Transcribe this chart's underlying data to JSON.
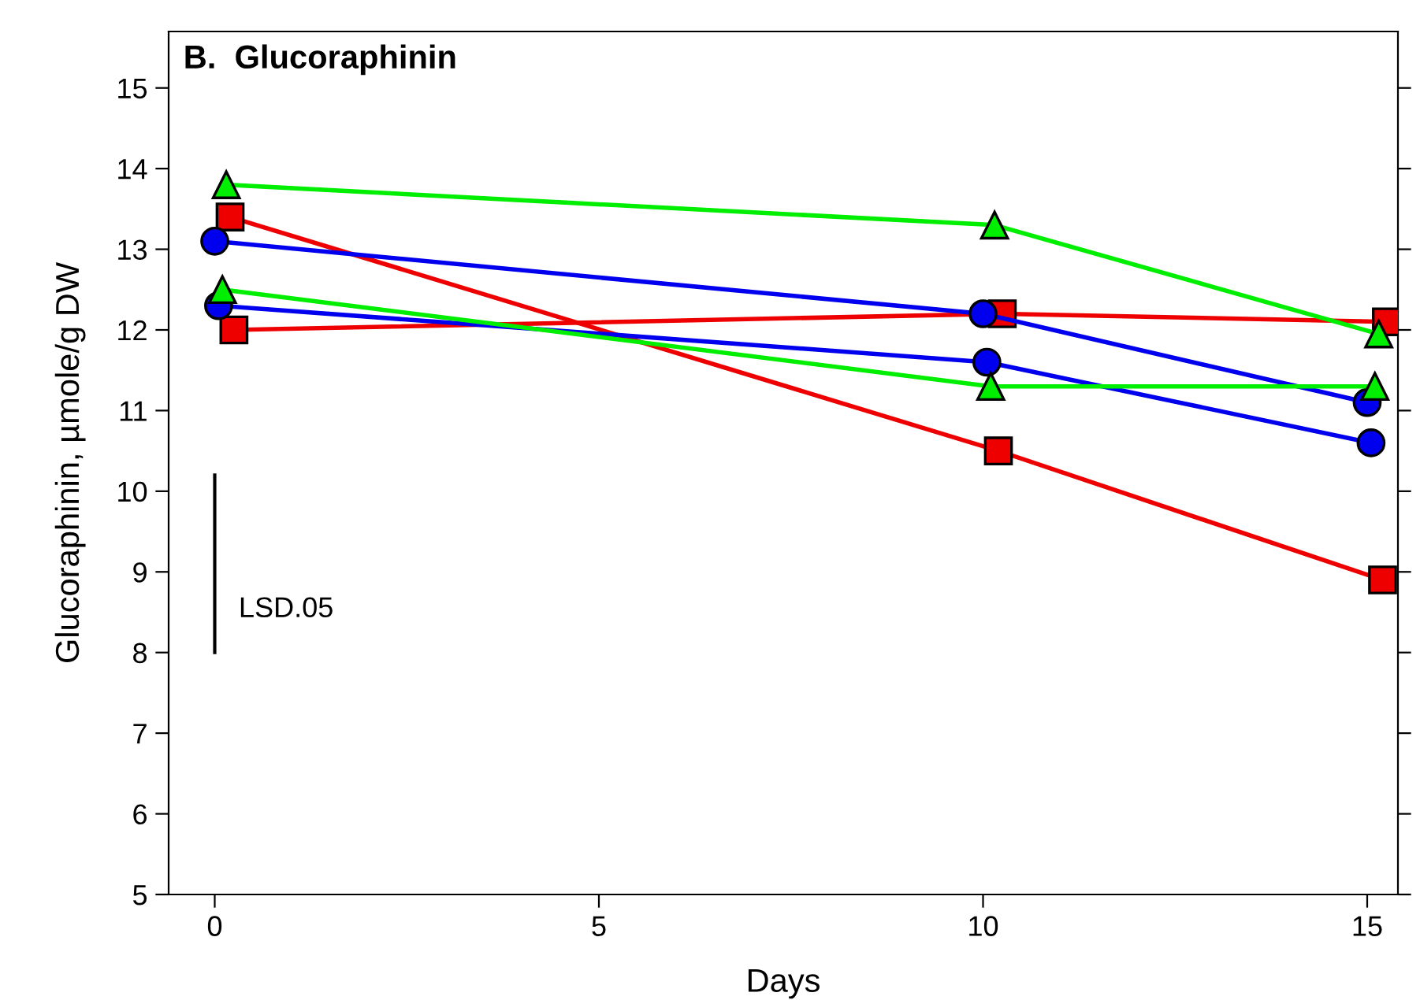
{
  "chart_data": {
    "type": "line",
    "title": "B.  Glucoraphinin",
    "xlabel": "Days",
    "ylabel": "Glucoraphinin, µmole/g DW",
    "xlim": [
      -0.6,
      15.4
    ],
    "xticks": [
      0,
      5,
      10,
      15
    ],
    "ylim": [
      5,
      15.7
    ],
    "yticks": [
      5,
      6,
      7,
      8,
      9,
      10,
      11,
      12,
      13,
      14,
      15
    ],
    "grid": false,
    "legend": false,
    "series": [
      {
        "color": "#00ee00",
        "marker": "triangle",
        "x": [
          0.15,
          10.15,
          15.15
        ],
        "values": [
          13.8,
          13.3,
          11.95
        ]
      },
      {
        "color": "#00ee00",
        "marker": "triangle",
        "x": [
          0.1,
          10.1,
          15.1
        ],
        "values": [
          12.5,
          11.3,
          11.3
        ]
      },
      {
        "color": "#0000ee",
        "marker": "circle",
        "x": [
          0,
          10,
          15
        ],
        "values": [
          13.1,
          12.2,
          11.1
        ]
      },
      {
        "color": "#0000ee",
        "marker": "circle",
        "x": [
          0.05,
          10.05,
          15.05
        ],
        "values": [
          12.3,
          11.6,
          10.6
        ]
      },
      {
        "color": "#ee0000",
        "marker": "square",
        "x": [
          0.2,
          10.2,
          15.2
        ],
        "values": [
          13.4,
          10.5,
          8.9
        ]
      },
      {
        "color": "#ee0000",
        "marker": "square",
        "x": [
          0.25,
          10.25,
          15.25
        ],
        "values": [
          12.0,
          12.2,
          12.1
        ]
      },
      {
        "color": "#000000",
        "marker": "none",
        "x": [
          0,
          0
        ],
        "values": [
          8.0,
          10.2
        ]
      }
    ],
    "annotations": [
      "LSD.05"
    ]
  }
}
